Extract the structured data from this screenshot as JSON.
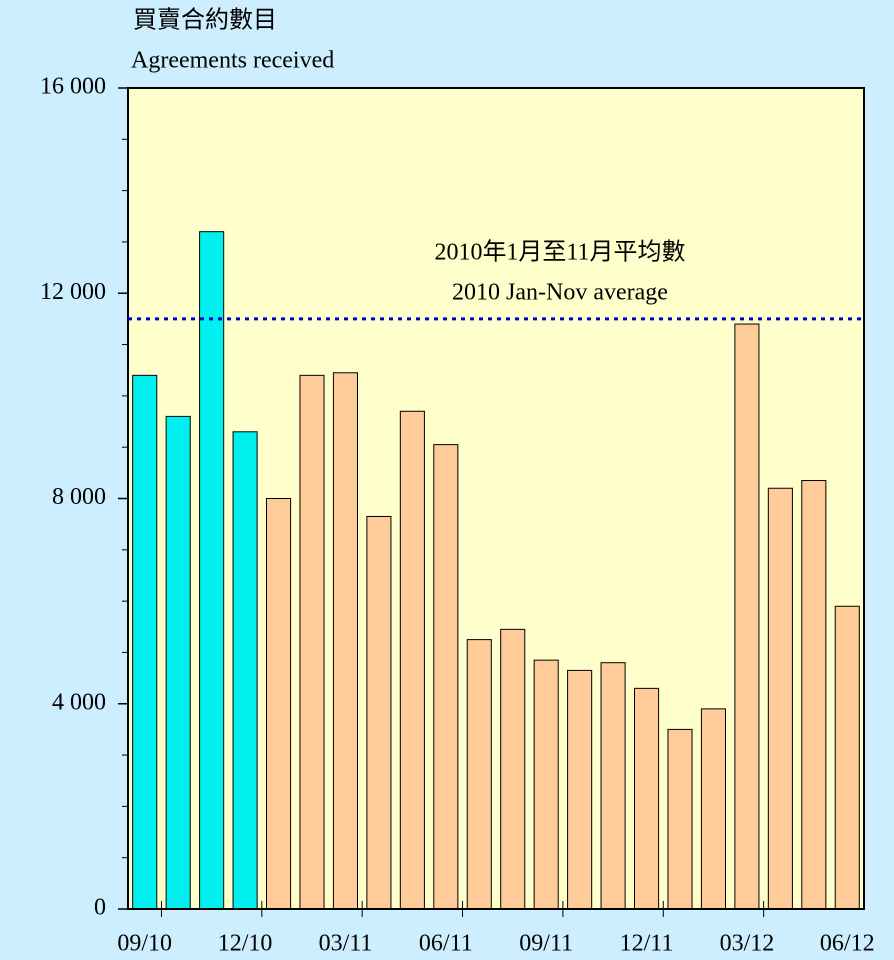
{
  "chart_data": {
    "type": "bar",
    "y_label": [
      "買賣合約數目",
      "Agreements received"
    ],
    "categories": [
      "09/10",
      null,
      null,
      "12/10",
      null,
      null,
      "03/11",
      null,
      null,
      "06/11",
      null,
      null,
      "09/11",
      null,
      null,
      "12/11",
      null,
      null,
      "03/12",
      null,
      null,
      "06/12"
    ],
    "values": [
      10400,
      9600,
      13200,
      9300,
      8000,
      10400,
      10450,
      7650,
      9700,
      9050,
      5250,
      5450,
      4850,
      4650,
      4800,
      4300,
      3500,
      3900,
      11400,
      8200,
      8350,
      5900
    ],
    "colors": [
      "#00f0f0",
      "#00f0f0",
      "#00f0f0",
      "#00f0f0",
      "#ffcc99",
      "#ffcc99",
      "#ffcc99",
      "#ffcc99",
      "#ffcc99",
      "#ffcc99",
      "#ffcc99",
      "#ffcc99",
      "#ffcc99",
      "#ffcc99",
      "#ffcc99",
      "#ffcc99",
      "#ffcc99",
      "#ffcc99",
      "#ffcc99",
      "#ffcc99",
      "#ffcc99",
      "#ffcc99"
    ],
    "ylim": [
      0,
      16000
    ],
    "yticks": [
      0,
      {
        "value": 4000,
        "label": "4 000"
      },
      {
        "value": 8000,
        "label": "8 000"
      },
      {
        "value": 12000,
        "label": "12 000"
      },
      {
        "value": 16000,
        "label": "16 000"
      }
    ],
    "average": {
      "value": 11500,
      "color": "#0000cc",
      "label": [
        "2010年1月至11月平均數",
        "2010 Jan-Nov average"
      ]
    }
  }
}
